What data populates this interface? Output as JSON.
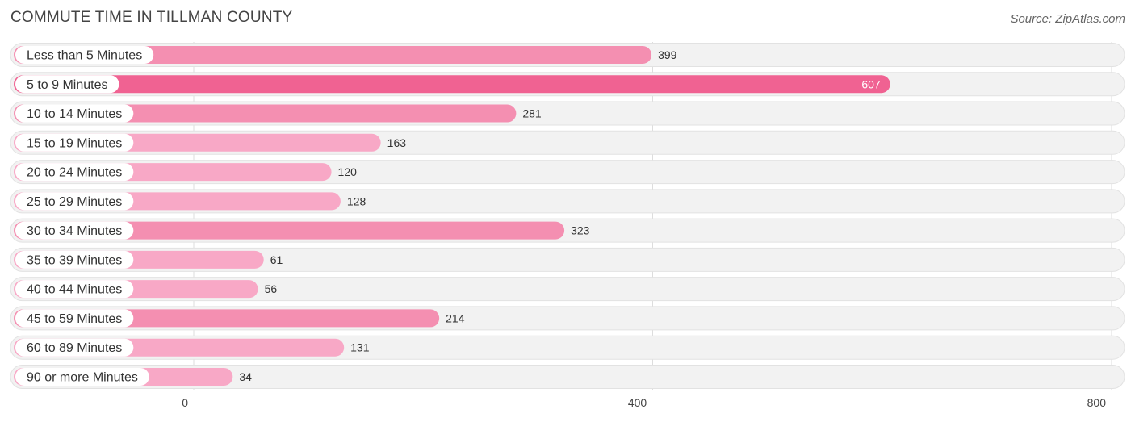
{
  "title": "COMMUTE TIME IN TILLMAN COUNTY",
  "source": "Source: ZipAtlas.com",
  "chart_data": {
    "type": "bar",
    "orientation": "horizontal",
    "title": "COMMUTE TIME IN TILLMAN COUNTY",
    "categories": [
      "Less than 5 Minutes",
      "5 to 9 Minutes",
      "10 to 14 Minutes",
      "15 to 19 Minutes",
      "20 to 24 Minutes",
      "25 to 29 Minutes",
      "30 to 34 Minutes",
      "35 to 39 Minutes",
      "40 to 44 Minutes",
      "45 to 59 Minutes",
      "60 to 89 Minutes",
      "90 or more Minutes"
    ],
    "values": [
      399,
      607,
      281,
      163,
      120,
      128,
      323,
      61,
      56,
      214,
      131,
      34
    ],
    "value_labels": [
      "399",
      "607",
      "281",
      "163",
      "120",
      "128",
      "323",
      "61",
      "56",
      "214",
      "131",
      "34"
    ],
    "xlim": [
      0,
      800
    ],
    "ticks": [
      0,
      400,
      800
    ],
    "tick_labels": [
      "0",
      "400",
      "800"
    ],
    "grid": true,
    "colors": {
      "bar_max": "#f06292",
      "bar_mid": "#f48fb1",
      "bar_light": "#f8a8c6",
      "track": "#f2f2f2",
      "track_border": "#e2e2e2",
      "grid": "#dddddd"
    }
  }
}
